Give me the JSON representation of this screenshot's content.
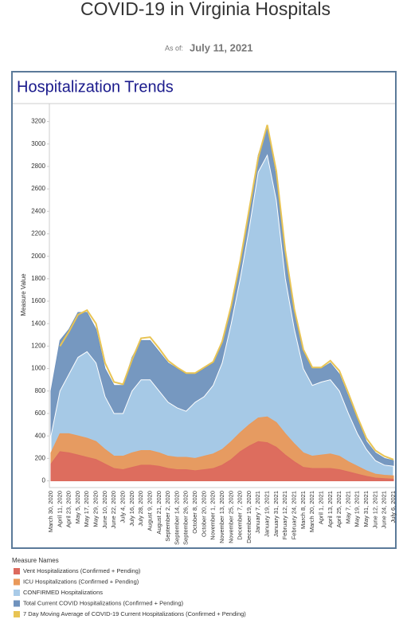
{
  "title": "COVID-19 in Virginia Hospitals",
  "as_of_label": "As of:",
  "as_of_date": "July 11, 2021",
  "chart_data": {
    "type": "area",
    "title": "Hospitalization Trends",
    "y_label": "Measure Value",
    "legend_title": "Measure Names",
    "categories": [
      "March 30, 2020",
      "April 11, 2020",
      "April 23, 2020",
      "May 5, 2020",
      "May 17, 2020",
      "May 29, 2020",
      "June 10, 2020",
      "June 22, 2020",
      "July 4, 2020",
      "July 16, 2020",
      "July 28, 2020",
      "August 9, 2020",
      "August 21, 2020",
      "September 2, 2020",
      "September 14, 2020",
      "September 26, 2020",
      "October 8, 2020",
      "October 20, 2020",
      "November 1, 2020",
      "November 13, 2020",
      "November 25, 2020",
      "December 7, 2020",
      "December 19, 2020",
      "January 7, 2021",
      "January 19, 2021",
      "January 31, 2021",
      "February 12, 2021",
      "February 24, 2021",
      "March 8, 2021",
      "March 20, 2021",
      "April 1, 2021",
      "April 13, 2021",
      "April 25, 2021",
      "May 7, 2021",
      "May 19, 2021",
      "May 31, 2021",
      "June 12, 2021",
      "June 24, 2021",
      "July 6, 2021"
    ],
    "series": [
      {
        "name": "Vent Hospitalizations (Confirmed + Pending)",
        "color": "#dc6a5e",
        "mark": "area",
        "values": [
          150,
          260,
          250,
          230,
          210,
          190,
          150,
          110,
          100,
          120,
          140,
          140,
          130,
          110,
          100,
          100,
          90,
          100,
          110,
          140,
          190,
          260,
          310,
          350,
          340,
          300,
          230,
          170,
          120,
          110,
          110,
          110,
          100,
          80,
          60,
          40,
          25,
          20,
          15
        ]
      },
      {
        "name": "ICU Hospitalizations (Confirmed + Pending)",
        "color": "#e9995a",
        "mark": "area",
        "values": [
          250,
          420,
          420,
          400,
          380,
          350,
          280,
          220,
          220,
          250,
          270,
          270,
          250,
          220,
          210,
          210,
          200,
          220,
          240,
          280,
          350,
          430,
          500,
          560,
          570,
          520,
          420,
          330,
          250,
          220,
          230,
          240,
          220,
          170,
          130,
          90,
          60,
          50,
          45
        ]
      },
      {
        "name": "CONFIRMED Hospitalizations",
        "color": "#a9cbe8",
        "mark": "area",
        "values": [
          400,
          800,
          950,
          1100,
          1150,
          1050,
          750,
          600,
          600,
          800,
          900,
          900,
          800,
          700,
          650,
          620,
          700,
          750,
          850,
          1050,
          1400,
          1800,
          2250,
          2750,
          2900,
          2500,
          1800,
          1350,
          1000,
          850,
          880,
          900,
          800,
          600,
          420,
          280,
          180,
          140,
          130
        ]
      },
      {
        "name": "Total Current COVID Hospitalizations (Confirmed + Pending)",
        "color": "#6f92bd",
        "mark": "area",
        "values": [
          800,
          1250,
          1350,
          1500,
          1500,
          1350,
          1000,
          850,
          850,
          1100,
          1250,
          1250,
          1150,
          1050,
          1000,
          950,
          950,
          1000,
          1050,
          1250,
          1550,
          1950,
          2400,
          2900,
          3150,
          2700,
          2000,
          1500,
          1150,
          1000,
          1000,
          1050,
          950,
          750,
          550,
          350,
          250,
          200,
          180
        ]
      },
      {
        "name": "7 Day Moving Average of COVID-19 Current Hospitalizations (Confirmed + Pending)",
        "color": "#e8c454",
        "mark": "line",
        "values": [
          null,
          1200,
          1330,
          1480,
          1520,
          1400,
          1050,
          880,
          860,
          1080,
          1270,
          1280,
          1180,
          1070,
          1010,
          960,
          960,
          1010,
          1060,
          1240,
          1560,
          1960,
          2420,
          2880,
          3170,
          2760,
          2050,
          1530,
          1170,
          1010,
          1010,
          1070,
          980,
          780,
          570,
          380,
          270,
          220,
          190
        ]
      }
    ],
    "ylim": [
      -60,
      3360
    ],
    "yticks": [
      0,
      200,
      400,
      600,
      800,
      1000,
      1200,
      1400,
      1600,
      1800,
      2000,
      2200,
      2400,
      2600,
      2800,
      3000,
      3200
    ],
    "grid": false
  }
}
